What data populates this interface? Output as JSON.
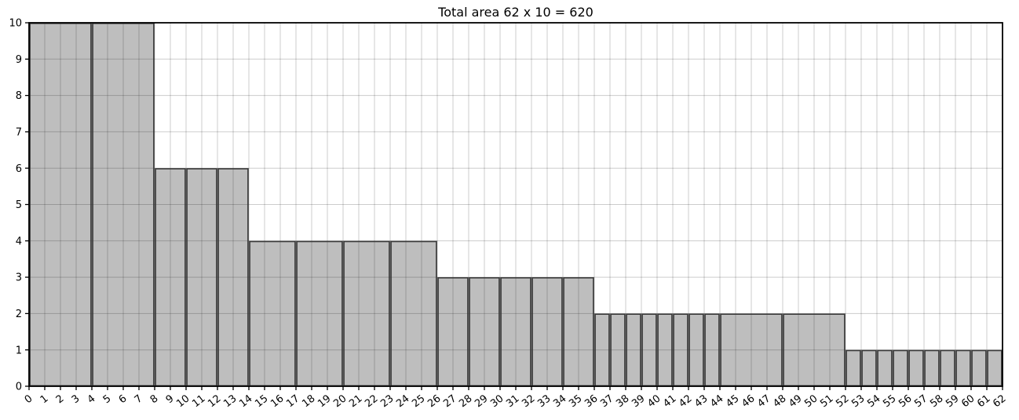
{
  "figure": {
    "title": "Total area 62 x 10 = 620"
  },
  "colors": {
    "background": "#ffffff",
    "bar_fill": "#bebebe",
    "bar_edge": "#3a3a3a",
    "grid": "rgba(0,0,0,0.20)",
    "spine": "#000000",
    "tick": "#000000",
    "text": "#000000"
  },
  "chart_data": {
    "type": "bar",
    "title": "Total area 62 x 10 = 620",
    "xlabel": "",
    "ylabel": "",
    "xlim": [
      0,
      62
    ],
    "ylim": [
      0,
      10
    ],
    "grid": true,
    "legend": "none",
    "x_ticks": [
      "0",
      "1",
      "2",
      "3",
      "4",
      "5",
      "6",
      "7",
      "8",
      "9",
      "10",
      "11",
      "12",
      "13",
      "14",
      "15",
      "16",
      "17",
      "18",
      "19",
      "20",
      "21",
      "22",
      "23",
      "24",
      "25",
      "26",
      "27",
      "28",
      "29",
      "30",
      "31",
      "32",
      "33",
      "34",
      "35",
      "36",
      "37",
      "38",
      "39",
      "40",
      "41",
      "42",
      "43",
      "44",
      "45",
      "46",
      "47",
      "48",
      "49",
      "50",
      "51",
      "52",
      "53",
      "54",
      "55",
      "56",
      "57",
      "58",
      "59",
      "60",
      "61",
      "62"
    ],
    "y_ticks": [
      "0",
      "1",
      "2",
      "3",
      "4",
      "5",
      "6",
      "7",
      "8",
      "9",
      "10"
    ],
    "bars": [
      {
        "x0": 0,
        "x1": 4,
        "height": 10
      },
      {
        "x0": 4,
        "x1": 8,
        "height": 10
      },
      {
        "x0": 8,
        "x1": 10,
        "height": 6
      },
      {
        "x0": 10,
        "x1": 12,
        "height": 6
      },
      {
        "x0": 12,
        "x1": 14,
        "height": 6
      },
      {
        "x0": 14,
        "x1": 17,
        "height": 4
      },
      {
        "x0": 17,
        "x1": 20,
        "height": 4
      },
      {
        "x0": 20,
        "x1": 23,
        "height": 4
      },
      {
        "x0": 23,
        "x1": 26,
        "height": 4
      },
      {
        "x0": 26,
        "x1": 28,
        "height": 3
      },
      {
        "x0": 28,
        "x1": 30,
        "height": 3
      },
      {
        "x0": 30,
        "x1": 32,
        "height": 3
      },
      {
        "x0": 32,
        "x1": 34,
        "height": 3
      },
      {
        "x0": 34,
        "x1": 36,
        "height": 3
      },
      {
        "x0": 36,
        "x1": 37,
        "height": 2
      },
      {
        "x0": 37,
        "x1": 38,
        "height": 2
      },
      {
        "x0": 38,
        "x1": 39,
        "height": 2
      },
      {
        "x0": 39,
        "x1": 40,
        "height": 2
      },
      {
        "x0": 40,
        "x1": 41,
        "height": 2
      },
      {
        "x0": 41,
        "x1": 42,
        "height": 2
      },
      {
        "x0": 42,
        "x1": 43,
        "height": 2
      },
      {
        "x0": 43,
        "x1": 44,
        "height": 2
      },
      {
        "x0": 44,
        "x1": 48,
        "height": 2
      },
      {
        "x0": 48,
        "x1": 52,
        "height": 2
      },
      {
        "x0": 52,
        "x1": 53,
        "height": 1
      },
      {
        "x0": 53,
        "x1": 54,
        "height": 1
      },
      {
        "x0": 54,
        "x1": 55,
        "height": 1
      },
      {
        "x0": 55,
        "x1": 56,
        "height": 1
      },
      {
        "x0": 56,
        "x1": 57,
        "height": 1
      },
      {
        "x0": 57,
        "x1": 58,
        "height": 1
      },
      {
        "x0": 58,
        "x1": 59,
        "height": 1
      },
      {
        "x0": 59,
        "x1": 60,
        "height": 1
      },
      {
        "x0": 60,
        "x1": 61,
        "height": 1
      },
      {
        "x0": 61,
        "x1": 62,
        "height": 1
      }
    ]
  }
}
